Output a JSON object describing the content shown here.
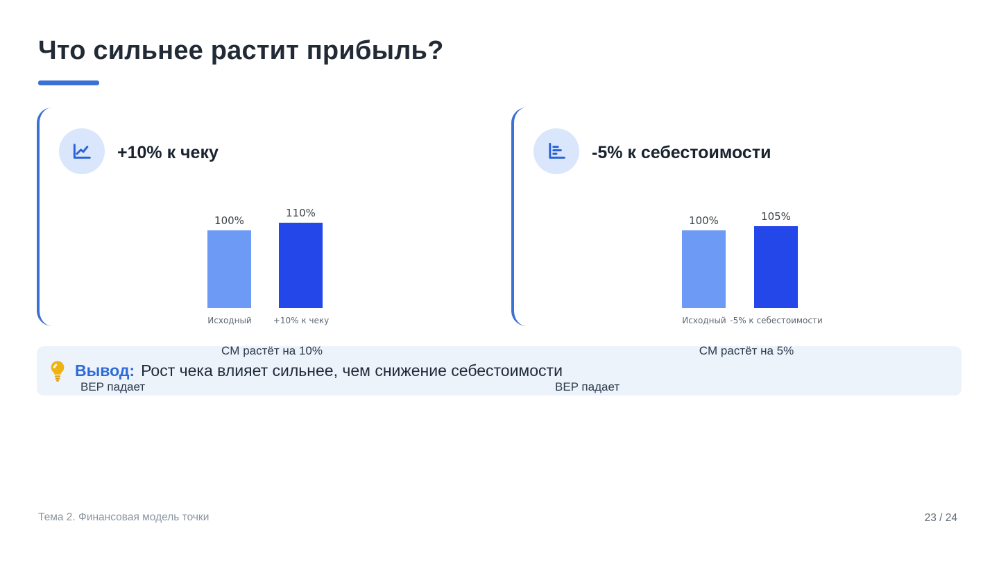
{
  "slide": {
    "title": "Что сильнее растит прибыль?",
    "footer": {
      "topic": "Тема 2. Финансовая модель точки",
      "page": "23 / 24"
    }
  },
  "panels": [
    {
      "icon": "line-chart-icon",
      "title": "+10% к чеку",
      "cm_note": "CM растёт на 10%",
      "bep_note": "BEP падает"
    },
    {
      "icon": "horizontal-bar-chart-icon",
      "title": "-5% к себестоимости",
      "cm_note": "CM растёт на 5%",
      "bep_note": "BEP падает"
    }
  ],
  "conclusion": {
    "label": "Вывод:",
    "text": "Рост чека влияет сильнее, чем снижение себестоимости"
  },
  "chart_data": [
    {
      "type": "bar",
      "title": "+10% к чеку",
      "categories": [
        "Исходный",
        "+10% к чеку"
      ],
      "values": [
        100,
        110
      ],
      "value_labels": [
        "100%",
        "110%"
      ],
      "colors": [
        "#6d9af5",
        "#2347e8"
      ],
      "grid": false,
      "axes_visible": false,
      "legend": "none"
    },
    {
      "type": "bar",
      "title": "-5% к себестоимости",
      "categories": [
        "Исходный",
        "-5% к себестоимости"
      ],
      "values": [
        100,
        105
      ],
      "value_labels": [
        "100%",
        "105%"
      ],
      "colors": [
        "#6d9af5",
        "#2347e8"
      ],
      "grid": false,
      "axes_visible": false,
      "legend": "none"
    }
  ],
  "colors": {
    "accent": "#3b70d4",
    "bar-light": "#6d9af5",
    "bar-dark": "#2347e8",
    "icon-bg": "#d9e6fb",
    "icon-stroke": "#2b63d6",
    "banner-bg": "#edf3fb",
    "conclusion-label": "#2d6ad8",
    "title-text": "#212a35",
    "body-text": "#2c3a4b",
    "chart-value-text": "#3c4248",
    "chart-tick-text": "#5d6772",
    "footer-text": "#8a949f",
    "page-text": "#5f6a76",
    "bulb": "#eeb211"
  }
}
